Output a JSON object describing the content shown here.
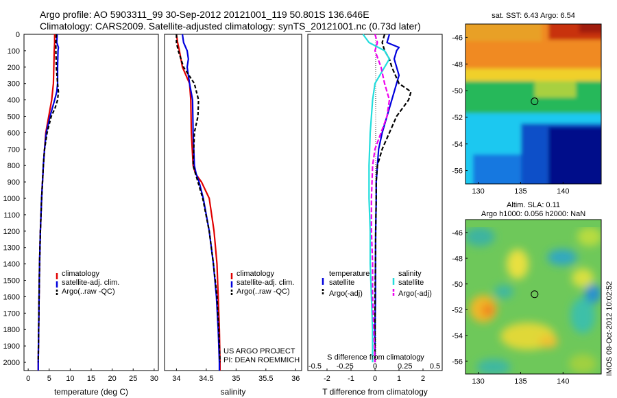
{
  "header": {
    "title_line1": "Argo profile: AO 5903311_99 30-Sep-2012 20121001_119 50.801S 136.646E",
    "title_line2": "Climatology: CARS2009. Satellite-adjusted climatology: synTS_20121001.nc (0.73d later)"
  },
  "credits": {
    "line1": "US ARGO PROJECT",
    "line2": "PI: DEAN ROEMMICH",
    "stamp": "IMOS 09-Oct-2012 10:02:52"
  },
  "colors": {
    "climatology": "#e00000",
    "satellite": "#0000dd",
    "argo": "#000000",
    "temperature_satellite": "#0000dd",
    "salinity_satellite": "#22dddd",
    "salinity_argo": "#ee00ee"
  },
  "chart_data": [
    {
      "type": "line",
      "id": "temperature-profile",
      "xlabel": "temperature (deg C)",
      "xlim": [
        -1,
        31
      ],
      "xticks": [
        0,
        5,
        10,
        15,
        20,
        25,
        30
      ],
      "ylim": [
        2050,
        0
      ],
      "yticks": [
        0,
        100,
        200,
        300,
        400,
        500,
        600,
        700,
        800,
        900,
        1000,
        1100,
        1200,
        1300,
        1400,
        1500,
        1600,
        1700,
        1800,
        1900,
        2000
      ],
      "legend": [
        "climatology",
        "satellite-adj. clim.",
        "Argo(..raw -QC)"
      ],
      "series": [
        {
          "name": "climatology",
          "depth": [
            0,
            50,
            100,
            200,
            300,
            400,
            500,
            600,
            700,
            800,
            900,
            1000,
            1200,
            1400,
            1600,
            1800,
            2000,
            2050
          ],
          "values": [
            6.3,
            6.3,
            6.2,
            6.1,
            6.0,
            5.6,
            4.9,
            4.2,
            3.9,
            3.6,
            3.4,
            3.2,
            2.9,
            2.7,
            2.6,
            2.5,
            2.4,
            2.4
          ]
        },
        {
          "name": "satellite-adj. clim.",
          "depth": [
            0,
            50,
            80,
            100,
            200,
            300,
            350,
            400,
            500,
            600,
            700,
            800,
            900,
            1000,
            1200,
            1400,
            1600,
            1800,
            2000,
            2050
          ],
          "values": [
            6.9,
            6.8,
            7.2,
            7.1,
            7.0,
            7.0,
            6.8,
            6.3,
            5.2,
            4.3,
            3.9,
            3.6,
            3.4,
            3.2,
            2.9,
            2.7,
            2.6,
            2.5,
            2.4,
            2.4
          ]
        },
        {
          "name": "Argo(..raw -QC)",
          "depth": [
            0,
            50,
            100,
            200,
            300,
            350,
            400,
            450,
            500,
            600,
            700,
            800,
            900,
            1000,
            1200,
            1400,
            1600,
            1800,
            2000
          ],
          "values": [
            6.7,
            6.6,
            6.6,
            6.7,
            7.0,
            7.2,
            7.0,
            6.4,
            5.5,
            4.5,
            3.9,
            3.6,
            3.4,
            3.2,
            2.9,
            2.7,
            2.6,
            2.5,
            2.4
          ]
        }
      ]
    },
    {
      "type": "line",
      "id": "salinity-profile",
      "xlabel": "salinity",
      "xlim": [
        33.8,
        36.1
      ],
      "xticks": [
        34,
        34.5,
        35,
        35.5,
        36
      ],
      "ylim": [
        2050,
        0
      ],
      "legend": [
        "climatology",
        "satellite-adj. clim.",
        "Argo(..raw -QC)"
      ],
      "series": [
        {
          "name": "climatology",
          "depth": [
            0,
            50,
            100,
            200,
            300,
            400,
            600,
            800,
            850,
            900,
            1000,
            1200,
            1400,
            1600,
            1800,
            2000,
            2050
          ],
          "values": [
            34.0,
            34.02,
            34.05,
            34.1,
            34.22,
            34.24,
            34.25,
            34.28,
            34.32,
            34.42,
            34.55,
            34.63,
            34.68,
            34.7,
            34.72,
            34.73,
            34.73
          ]
        },
        {
          "name": "satellite-adj. clim.",
          "depth": [
            0,
            50,
            100,
            150,
            200,
            300,
            400,
            600,
            800,
            850,
            900,
            1000,
            1200,
            1400,
            1600,
            1800,
            2000,
            2050
          ],
          "values": [
            34.1,
            34.12,
            34.18,
            34.2,
            34.18,
            34.22,
            34.27,
            34.28,
            34.3,
            34.33,
            34.38,
            34.45,
            34.55,
            34.62,
            34.67,
            34.7,
            34.72,
            34.72
          ]
        },
        {
          "name": "Argo(..raw -QC)",
          "depth": [
            0,
            50,
            100,
            200,
            300,
            400,
            500,
            600,
            800,
            900,
            1000,
            1200,
            1400,
            1600,
            1800,
            2000
          ],
          "values": [
            34.0,
            34.0,
            34.03,
            34.12,
            34.3,
            34.37,
            34.36,
            34.3,
            34.28,
            34.36,
            34.44,
            34.55,
            34.62,
            34.68,
            34.71,
            34.73
          ]
        }
      ]
    },
    {
      "type": "line",
      "id": "difference-profile",
      "xlabel": "T difference from climatology",
      "toplabel": "S difference from climatology",
      "xlim": [
        -2.8,
        2.8
      ],
      "xticks": [
        -2,
        -1,
        0,
        1,
        2
      ],
      "sticks": [
        -0.5,
        -0.25,
        0,
        0.25,
        0.5
      ],
      "ylim": [
        2050,
        0
      ],
      "legend": {
        "temperature_title": "temperature",
        "salinity_title": "salinity",
        "temperature": [
          "satellite",
          "Argo(-adj)"
        ],
        "salinity": [
          "satellite",
          "Argo(-adj)"
        ]
      },
      "series": [
        {
          "name": "temperature satellite",
          "depth": [
            0,
            50,
            80,
            100,
            150,
            200,
            250,
            300,
            350,
            400,
            500,
            600,
            700,
            800,
            900,
            1000,
            1200,
            1400,
            1600,
            1800,
            2000
          ],
          "values": [
            0.6,
            0.5,
            1.0,
            0.9,
            0.8,
            0.9,
            1.0,
            0.9,
            0.8,
            0.7,
            0.5,
            0.3,
            0.15,
            0.1,
            0.05,
            0.05,
            0.03,
            0.02,
            0.02,
            0.0,
            0.0
          ]
        },
        {
          "name": "temperature Argo(-adj)",
          "depth": [
            0,
            50,
            100,
            150,
            200,
            300,
            350,
            400,
            500,
            600,
            700,
            800,
            900,
            1000,
            1200,
            1400,
            1600,
            1800,
            2000
          ],
          "values": [
            0.4,
            0.3,
            0.4,
            0.6,
            0.7,
            1.0,
            1.5,
            1.4,
            0.9,
            0.6,
            0.3,
            0.1,
            0.05,
            0.05,
            0.03,
            0.02,
            0.0,
            0.0,
            0.0
          ]
        },
        {
          "name": "salinity satellite",
          "depth": [
            0,
            50,
            100,
            150,
            200,
            300,
            400,
            500,
            600,
            800,
            1000,
            1200,
            1400,
            1600,
            1800,
            2000
          ],
          "values": [
            -0.1,
            -0.05,
            0.08,
            0.12,
            0.08,
            0.0,
            -0.02,
            -0.03,
            -0.04,
            -0.05,
            -0.05,
            -0.04,
            -0.04,
            -0.03,
            -0.02,
            -0.02
          ]
        },
        {
          "name": "salinity Argo(-adj)",
          "depth": [
            0,
            50,
            100,
            200,
            300,
            400,
            500,
            600,
            700,
            800,
            1000,
            1200,
            1400,
            1600,
            1800,
            2000
          ],
          "values": [
            0.0,
            0.02,
            0.0,
            0.05,
            0.08,
            0.12,
            0.1,
            0.05,
            0.0,
            -0.02,
            -0.03,
            -0.03,
            -0.02,
            -0.02,
            -0.01,
            0.0
          ]
        }
      ]
    },
    {
      "type": "heatmap",
      "id": "sst-map",
      "title": "sat. SST: 6.43 Argo: 6.54",
      "xticks": [
        130,
        135,
        140
      ],
      "yticks": [
        -46,
        -48,
        -50,
        -52,
        -54,
        -56
      ],
      "xlim": [
        128.5,
        144.5
      ],
      "ylim": [
        -57,
        -45
      ],
      "marker": {
        "lon": 136.646,
        "lat": -50.801
      }
    },
    {
      "type": "heatmap",
      "id": "sla-map",
      "title_line1": "Altim. SLA: 0.11",
      "title_line2": "Argo h1000: 0.056 h2000: NaN",
      "xticks": [
        130,
        135,
        140
      ],
      "yticks": [
        -46,
        -48,
        -50,
        -52,
        -54,
        -56
      ],
      "xlim": [
        128.5,
        144.5
      ],
      "ylim": [
        -57,
        -45
      ],
      "marker": {
        "lon": 136.646,
        "lat": -50.801
      }
    }
  ]
}
